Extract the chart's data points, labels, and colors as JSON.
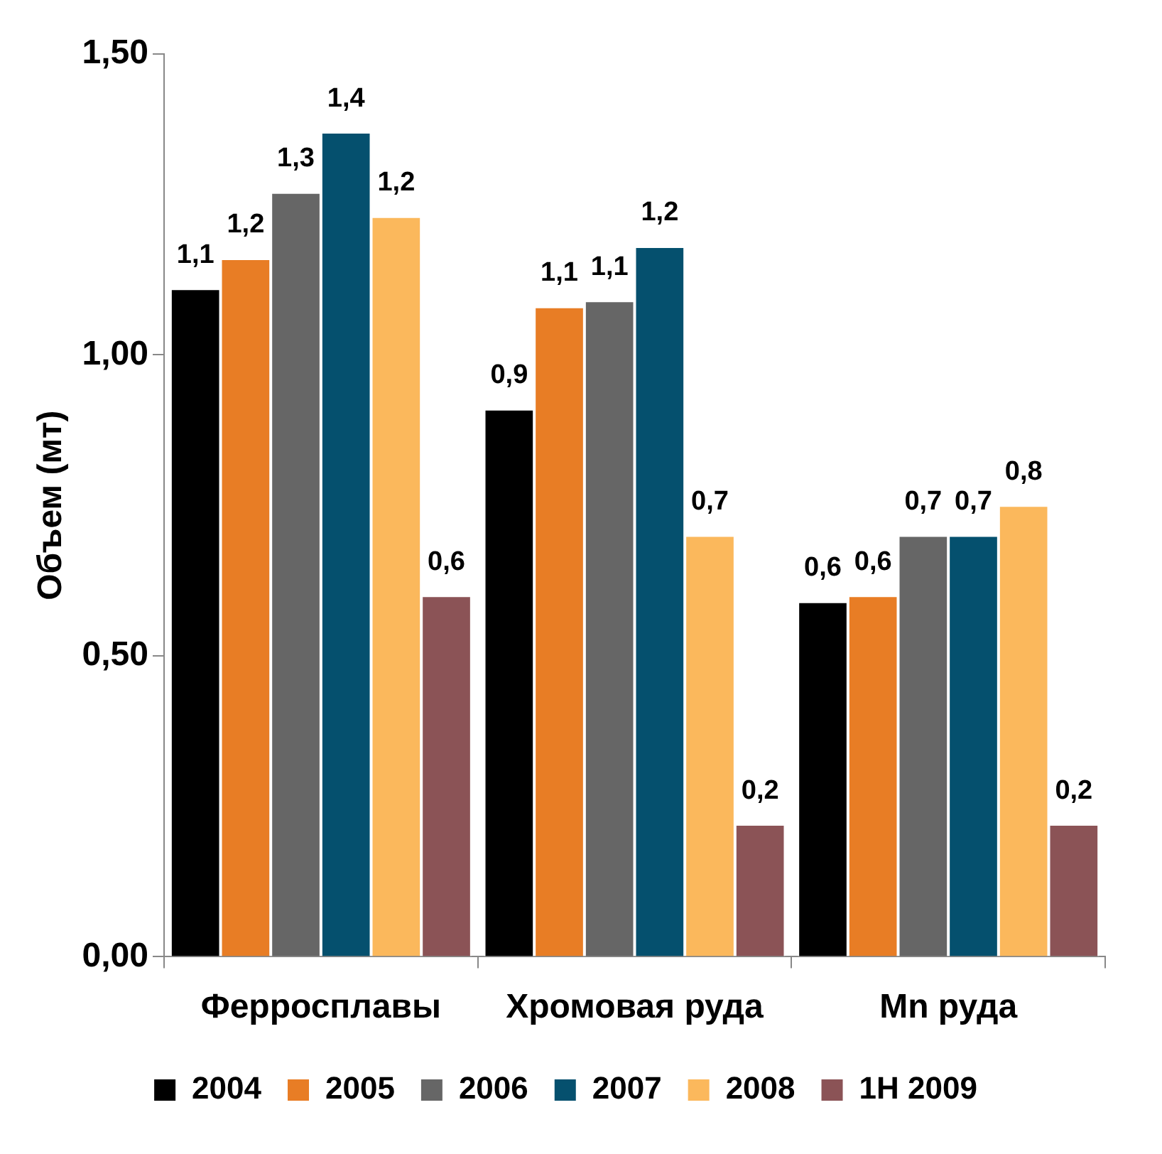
{
  "chart_data": {
    "type": "bar",
    "ylabel": "Объем (мт)",
    "categories": [
      "Ферросплавы",
      "Хромовая руда",
      "Mn руда"
    ],
    "series": [
      {
        "name": "2004",
        "color": "#000000",
        "values": [
          1.11,
          0.91,
          0.59
        ],
        "value_labels": [
          "1,1",
          "0,9",
          "0,6"
        ]
      },
      {
        "name": "2005",
        "color": "#e87d25",
        "values": [
          1.16,
          1.08,
          0.6
        ],
        "value_labels": [
          "1,2",
          "1,1",
          "0,6"
        ]
      },
      {
        "name": "2006",
        "color": "#666666",
        "values": [
          1.27,
          1.09,
          0.7
        ],
        "value_labels": [
          "1,3",
          "1,1",
          "0,7"
        ]
      },
      {
        "name": "2007",
        "color": "#05506e",
        "values": [
          1.37,
          1.18,
          0.7
        ],
        "value_labels": [
          "1,4",
          "1,2",
          "0,7"
        ]
      },
      {
        "name": "2008",
        "color": "#fbb85c",
        "values": [
          1.23,
          0.7,
          0.75
        ],
        "value_labels": [
          "1,2",
          "0,7",
          "0,8"
        ]
      },
      {
        "name": "1H 2009",
        "color": "#8b5356",
        "values": [
          0.6,
          0.22,
          0.22
        ],
        "value_labels": [
          "0,6",
          "0,2",
          "0,2"
        ]
      }
    ],
    "ylim": [
      0,
      1.5
    ],
    "yticks": [
      {
        "value": 0,
        "label": "0,00"
      },
      {
        "value": 0.5,
        "label": "0,50"
      },
      {
        "value": 1,
        "label": "1,00"
      },
      {
        "value": 1.5,
        "label": "1,50"
      }
    ],
    "grid": false,
    "legend": "bottom"
  }
}
